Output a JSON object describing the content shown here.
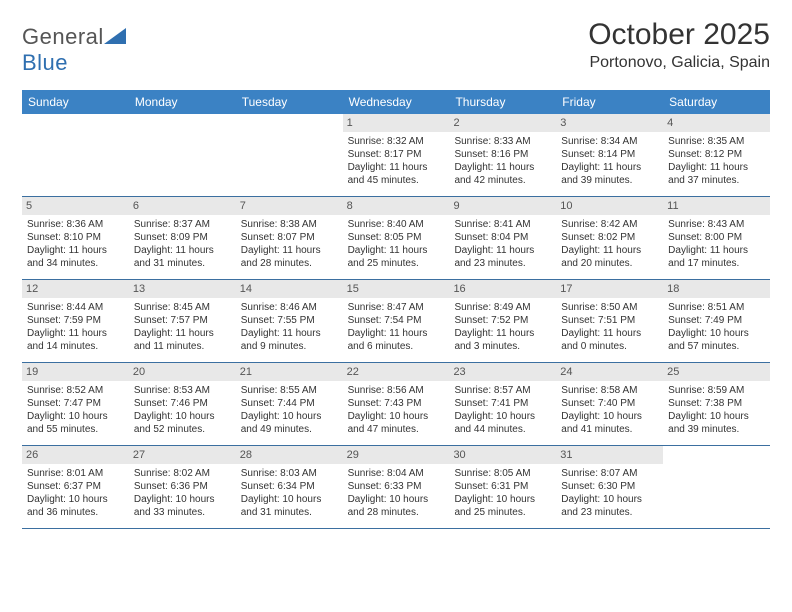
{
  "logo": {
    "text1": "General",
    "text2": "Blue"
  },
  "title": "October 2025",
  "location": "Portonovo, Galicia, Spain",
  "colors": {
    "header_bg": "#3b82c4",
    "header_text": "#ffffff",
    "daynum_bg": "#e8e8e8",
    "week_border": "#3b6fa0",
    "logo_accent": "#2f6fb0"
  },
  "weekdays": [
    "Sunday",
    "Monday",
    "Tuesday",
    "Wednesday",
    "Thursday",
    "Friday",
    "Saturday"
  ],
  "weeks": [
    [
      {
        "n": "",
        "empty": true
      },
      {
        "n": "",
        "empty": true
      },
      {
        "n": "",
        "empty": true
      },
      {
        "n": "1",
        "sr": "8:32 AM",
        "ss": "8:17 PM",
        "dl": "11 hours and 45 minutes."
      },
      {
        "n": "2",
        "sr": "8:33 AM",
        "ss": "8:16 PM",
        "dl": "11 hours and 42 minutes."
      },
      {
        "n": "3",
        "sr": "8:34 AM",
        "ss": "8:14 PM",
        "dl": "11 hours and 39 minutes."
      },
      {
        "n": "4",
        "sr": "8:35 AM",
        "ss": "8:12 PM",
        "dl": "11 hours and 37 minutes."
      }
    ],
    [
      {
        "n": "5",
        "sr": "8:36 AM",
        "ss": "8:10 PM",
        "dl": "11 hours and 34 minutes."
      },
      {
        "n": "6",
        "sr": "8:37 AM",
        "ss": "8:09 PM",
        "dl": "11 hours and 31 minutes."
      },
      {
        "n": "7",
        "sr": "8:38 AM",
        "ss": "8:07 PM",
        "dl": "11 hours and 28 minutes."
      },
      {
        "n": "8",
        "sr": "8:40 AM",
        "ss": "8:05 PM",
        "dl": "11 hours and 25 minutes."
      },
      {
        "n": "9",
        "sr": "8:41 AM",
        "ss": "8:04 PM",
        "dl": "11 hours and 23 minutes."
      },
      {
        "n": "10",
        "sr": "8:42 AM",
        "ss": "8:02 PM",
        "dl": "11 hours and 20 minutes."
      },
      {
        "n": "11",
        "sr": "8:43 AM",
        "ss": "8:00 PM",
        "dl": "11 hours and 17 minutes."
      }
    ],
    [
      {
        "n": "12",
        "sr": "8:44 AM",
        "ss": "7:59 PM",
        "dl": "11 hours and 14 minutes."
      },
      {
        "n": "13",
        "sr": "8:45 AM",
        "ss": "7:57 PM",
        "dl": "11 hours and 11 minutes."
      },
      {
        "n": "14",
        "sr": "8:46 AM",
        "ss": "7:55 PM",
        "dl": "11 hours and 9 minutes."
      },
      {
        "n": "15",
        "sr": "8:47 AM",
        "ss": "7:54 PM",
        "dl": "11 hours and 6 minutes."
      },
      {
        "n": "16",
        "sr": "8:49 AM",
        "ss": "7:52 PM",
        "dl": "11 hours and 3 minutes."
      },
      {
        "n": "17",
        "sr": "8:50 AM",
        "ss": "7:51 PM",
        "dl": "11 hours and 0 minutes."
      },
      {
        "n": "18",
        "sr": "8:51 AM",
        "ss": "7:49 PM",
        "dl": "10 hours and 57 minutes."
      }
    ],
    [
      {
        "n": "19",
        "sr": "8:52 AM",
        "ss": "7:47 PM",
        "dl": "10 hours and 55 minutes."
      },
      {
        "n": "20",
        "sr": "8:53 AM",
        "ss": "7:46 PM",
        "dl": "10 hours and 52 minutes."
      },
      {
        "n": "21",
        "sr": "8:55 AM",
        "ss": "7:44 PM",
        "dl": "10 hours and 49 minutes."
      },
      {
        "n": "22",
        "sr": "8:56 AM",
        "ss": "7:43 PM",
        "dl": "10 hours and 47 minutes."
      },
      {
        "n": "23",
        "sr": "8:57 AM",
        "ss": "7:41 PM",
        "dl": "10 hours and 44 minutes."
      },
      {
        "n": "24",
        "sr": "8:58 AM",
        "ss": "7:40 PM",
        "dl": "10 hours and 41 minutes."
      },
      {
        "n": "25",
        "sr": "8:59 AM",
        "ss": "7:38 PM",
        "dl": "10 hours and 39 minutes."
      }
    ],
    [
      {
        "n": "26",
        "sr": "8:01 AM",
        "ss": "6:37 PM",
        "dl": "10 hours and 36 minutes."
      },
      {
        "n": "27",
        "sr": "8:02 AM",
        "ss": "6:36 PM",
        "dl": "10 hours and 33 minutes."
      },
      {
        "n": "28",
        "sr": "8:03 AM",
        "ss": "6:34 PM",
        "dl": "10 hours and 31 minutes."
      },
      {
        "n": "29",
        "sr": "8:04 AM",
        "ss": "6:33 PM",
        "dl": "10 hours and 28 minutes."
      },
      {
        "n": "30",
        "sr": "8:05 AM",
        "ss": "6:31 PM",
        "dl": "10 hours and 25 minutes."
      },
      {
        "n": "31",
        "sr": "8:07 AM",
        "ss": "6:30 PM",
        "dl": "10 hours and 23 minutes."
      },
      {
        "n": "",
        "empty": true
      }
    ]
  ],
  "labels": {
    "sunrise": "Sunrise:",
    "sunset": "Sunset:",
    "daylight": "Daylight:"
  }
}
